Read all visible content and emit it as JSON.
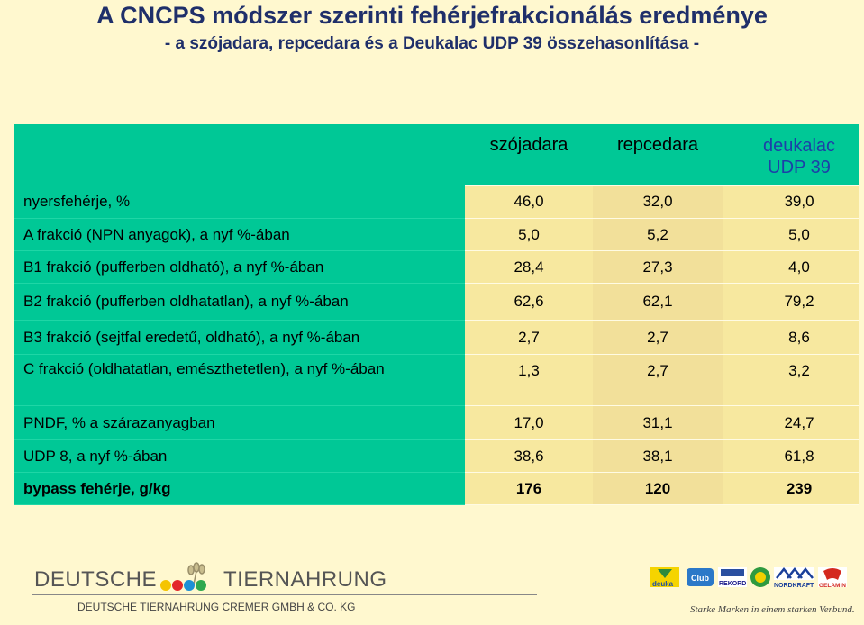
{
  "header": {
    "title": "A CNCPS módszer szerinti fehérjefrakcionálás eredménye",
    "subtitle": "- a szójadara, repcedara és a Deukalac UDP 39 összehasonlítása -"
  },
  "table": {
    "columns": [
      "szójadara",
      "repcedara",
      "deukalac UDP 39"
    ],
    "column_colors": {
      "deukalac": "#1d3fa8"
    },
    "rows": [
      {
        "label": "nyersfehérje, %",
        "values": [
          "46,0",
          "32,0",
          "39,0"
        ]
      },
      {
        "label": "A frakció (NPN anyagok), a nyf %-ában",
        "values": [
          "5,0",
          "5,2",
          "5,0"
        ]
      },
      {
        "label": "B1 frakció (pufferben oldható), a nyf %-ában",
        "values": [
          "28,4",
          "27,3",
          "4,0"
        ]
      },
      {
        "label": "B2 frakció (pufferben oldhatatlan), a nyf %-ában",
        "values": [
          "62,6",
          "62,1",
          "79,2"
        ]
      },
      {
        "label": "B3 frakció (sejtfal eredetű, oldható), a nyf %-ában",
        "values": [
          "2,7",
          "2,7",
          "8,6"
        ]
      },
      {
        "label": "C frakció (oldhatatlan, emészthetetlen), a nyf %-ában",
        "values": [
          "1,3",
          "2,7",
          "3,2"
        ]
      },
      {
        "label": "PNDF, % a szárazanyagban",
        "values": [
          "17,0",
          "31,1",
          "24,7"
        ]
      },
      {
        "label": "UDP 8, a nyf %-ában",
        "values": [
          "38,6",
          "38,1",
          "61,8"
        ]
      },
      {
        "label": "bypass fehérje, g/kg",
        "values": [
          "176",
          "120",
          "239"
        ]
      }
    ]
  },
  "footer": {
    "logo_left": "DEUTSCHE",
    "logo_right": "TIERNAHRUNG",
    "company": "DEUTSCHE TIERNAHRUNG CREMER GMBH & CO. KG",
    "tagline": "Starke Marken in einem starken Verbund.",
    "brand_logos": [
      "deuka",
      "Club",
      "REKORD",
      "Bergophor",
      "NORDKRAFT",
      "GELAMIN"
    ]
  },
  "colors": {
    "background": "#fff8cf",
    "label_column": "#00c896",
    "value_cells": "#f7e89f",
    "title": "#1f2f6a"
  }
}
